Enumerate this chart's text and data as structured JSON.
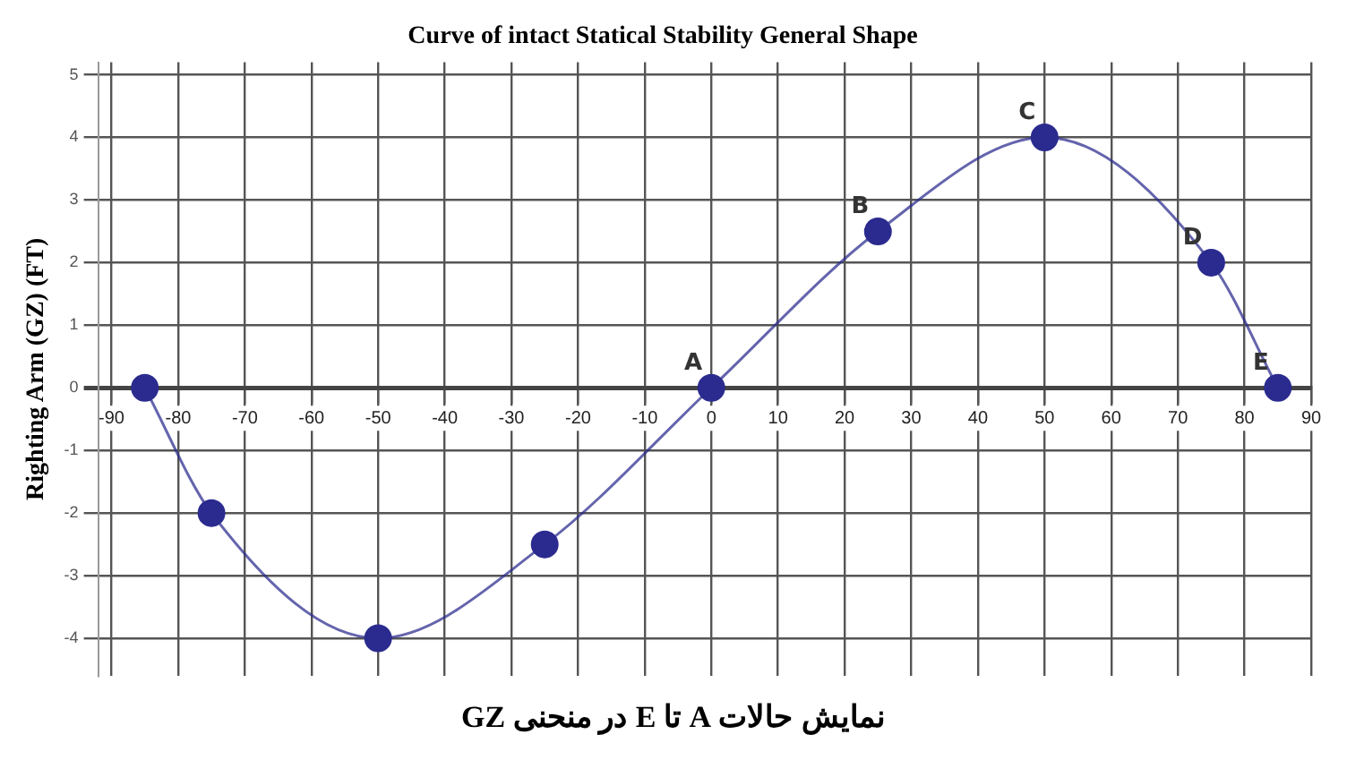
{
  "chart_data": {
    "type": "line",
    "title": "Curve of intact Statical Stability General Shape",
    "xlabel": "نمایش حالات A  تا E در منحنی GZ",
    "ylabel": "Righting Arm (GZ) (FT)",
    "x": [
      -85,
      -75,
      -50,
      -25,
      0,
      25,
      50,
      75,
      85
    ],
    "series": [
      {
        "color": "#2b2b8f",
        "values": [
          0,
          -2,
          -4,
          -2.5,
          0,
          2.5,
          4,
          2,
          0
        ]
      }
    ],
    "xlim": [
      -92,
      90
    ],
    "xticks": [
      -90,
      -80,
      -70,
      -60,
      -50,
      -40,
      -30,
      -20,
      -10,
      0,
      10,
      20,
      30,
      40,
      50,
      60,
      70,
      80,
      90
    ],
    "ylim": [
      -4.6,
      5.2
    ],
    "yticks": [
      -4,
      -3,
      -2,
      -1,
      0,
      1,
      2,
      3,
      4,
      5
    ],
    "grid": true,
    "legend": false,
    "marker": "circle",
    "line_style": "solid",
    "annotations": [
      {
        "text": "A",
        "x": 0,
        "y": 0
      },
      {
        "text": "B",
        "x": 25,
        "y": 2.5
      },
      {
        "text": "C",
        "x": 50,
        "y": 4
      },
      {
        "text": "D",
        "x": 75,
        "y": 2
      },
      {
        "text": "E",
        "x": 85,
        "y": 0
      }
    ]
  }
}
